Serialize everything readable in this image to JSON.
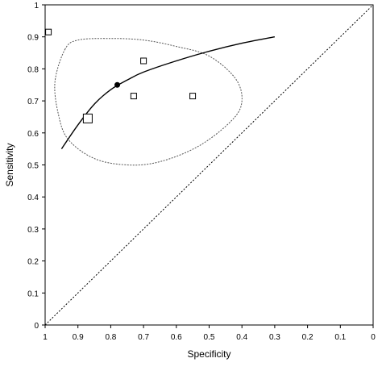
{
  "chart_data": {
    "type": "scatter",
    "title": "",
    "xlabel": "Specificity",
    "ylabel": "Sensitivity",
    "xlim": [
      1,
      0
    ],
    "ylim": [
      0,
      1
    ],
    "x_ticks": [
      "1",
      "0.9",
      "0.8",
      "0.7",
      "0.6",
      "0.5",
      "0.4",
      "0.3",
      "0.2",
      "0.1",
      "0"
    ],
    "y_ticks": [
      "0",
      "0.1",
      "0.2",
      "0.3",
      "0.4",
      "0.5",
      "0.6",
      "0.7",
      "0.8",
      "0.9",
      "1"
    ],
    "grid": false,
    "legend": "none",
    "studies": [
      {
        "x": 0.99,
        "y": 0.915,
        "size": "small"
      },
      {
        "x": 0.7,
        "y": 0.825,
        "size": "small"
      },
      {
        "x": 0.73,
        "y": 0.715,
        "size": "small"
      },
      {
        "x": 0.55,
        "y": 0.715,
        "size": "small"
      },
      {
        "x": 0.87,
        "y": 0.645,
        "size": "large"
      }
    ],
    "summary_point": {
      "x": 0.78,
      "y": 0.75
    },
    "sroc_curve": [
      {
        "x": 0.95,
        "y": 0.55
      },
      {
        "x": 0.9,
        "y": 0.625
      },
      {
        "x": 0.85,
        "y": 0.69
      },
      {
        "x": 0.8,
        "y": 0.735
      },
      {
        "x": 0.75,
        "y": 0.765
      },
      {
        "x": 0.7,
        "y": 0.79
      },
      {
        "x": 0.6,
        "y": 0.825
      },
      {
        "x": 0.5,
        "y": 0.855
      },
      {
        "x": 0.4,
        "y": 0.88
      },
      {
        "x": 0.3,
        "y": 0.9
      }
    ],
    "confidence_region": [
      {
        "x": 0.94,
        "y": 0.86
      },
      {
        "x": 0.9,
        "y": 0.89
      },
      {
        "x": 0.8,
        "y": 0.895
      },
      {
        "x": 0.7,
        "y": 0.89
      },
      {
        "x": 0.6,
        "y": 0.87
      },
      {
        "x": 0.5,
        "y": 0.84
      },
      {
        "x": 0.42,
        "y": 0.77
      },
      {
        "x": 0.4,
        "y": 0.7
      },
      {
        "x": 0.43,
        "y": 0.64
      },
      {
        "x": 0.53,
        "y": 0.56
      },
      {
        "x": 0.65,
        "y": 0.51
      },
      {
        "x": 0.75,
        "y": 0.5
      },
      {
        "x": 0.85,
        "y": 0.52
      },
      {
        "x": 0.93,
        "y": 0.58
      },
      {
        "x": 0.96,
        "y": 0.66
      },
      {
        "x": 0.97,
        "y": 0.76
      }
    ],
    "reference_line": [
      {
        "x": 1,
        "y": 0
      },
      {
        "x": 0,
        "y": 1
      }
    ]
  }
}
